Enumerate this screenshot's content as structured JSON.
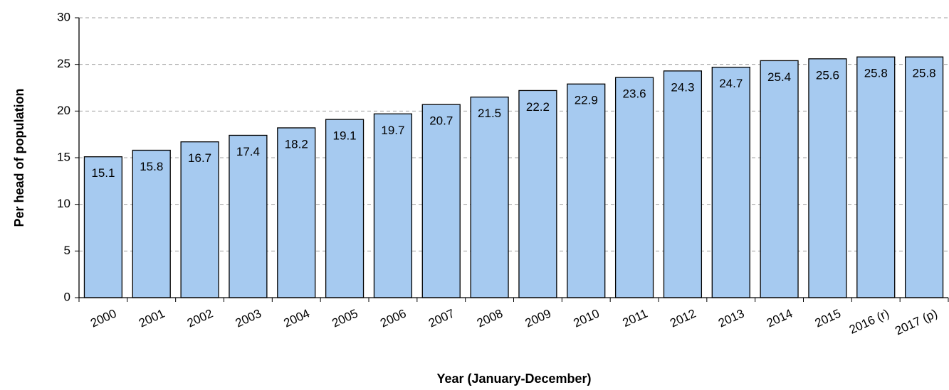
{
  "chart_data": {
    "type": "bar",
    "categories": [
      "2000",
      "2001",
      "2002",
      "2003",
      "2004",
      "2005",
      "2006",
      "2007",
      "2008",
      "2009",
      "2010",
      "2011",
      "2012",
      "2013",
      "2014",
      "2015",
      "2016 (r)",
      "2017 (p)"
    ],
    "values": [
      15.1,
      15.8,
      16.7,
      17.4,
      18.2,
      19.1,
      19.7,
      20.7,
      21.5,
      22.2,
      22.9,
      23.6,
      24.3,
      24.7,
      25.4,
      25.6,
      25.8,
      25.8
    ],
    "color": "#a6caf0",
    "ylim": [
      0,
      30
    ],
    "yticks": [
      0,
      5,
      10,
      15,
      20,
      25,
      30
    ],
    "grid": true,
    "xlabel": "Year (January-December)",
    "ylabel": "Per head of population"
  }
}
